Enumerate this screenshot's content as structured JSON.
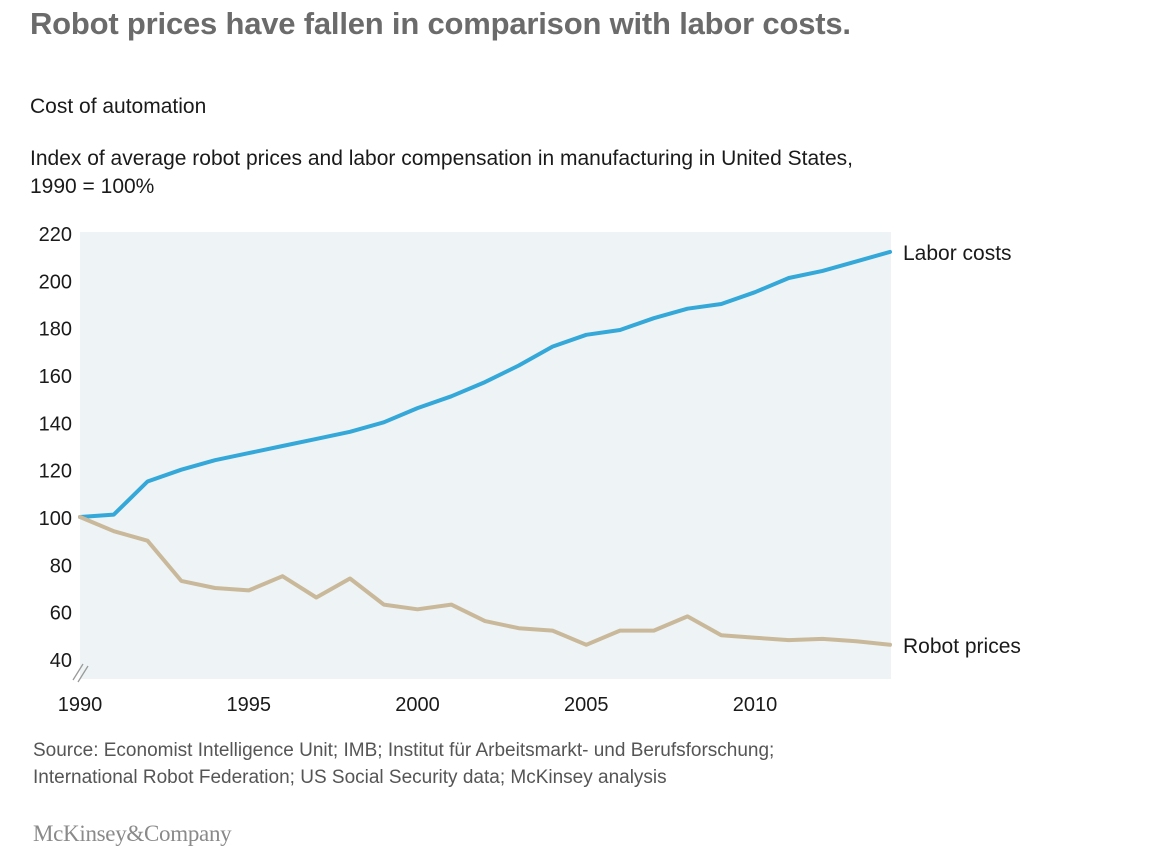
{
  "headline": "Robot prices have fallen in comparison with labor costs.",
  "subhead": "Cost of automation",
  "description": {
    "line1": "Index of average robot prices and labor compensation in manufacturing in United States,",
    "line2": "1990 = 100%"
  },
  "source": {
    "line1": "Source: Economist Intelligence Unit; IMB; Institut für Arbeitsmarkt- und Berufsforschung;",
    "line2": "International Robot Federation; US Social Security data; McKinsey analysis"
  },
  "logo": "McKinsey&Company",
  "colors": {
    "labor": "#34a8d8",
    "robot": "#c9b99a",
    "plot_bg": "#eef3f5",
    "axis_text": "#1a1a1a"
  },
  "chart_data": {
    "type": "line",
    "title": "Cost of automation",
    "xlabel": "",
    "ylabel": "",
    "xlim": [
      1990,
      2014
    ],
    "ylim": [
      35,
      220
    ],
    "axis_break": true,
    "grid": false,
    "x_ticks": [
      1990,
      1995,
      2000,
      2005,
      2010
    ],
    "x_tick_labels": [
      "1990",
      "1995",
      "2000",
      "2005",
      "2010"
    ],
    "y_ticks": [
      220,
      200,
      180,
      160,
      140,
      120,
      100,
      80,
      60,
      40
    ],
    "y_tick_labels": [
      "220",
      "200",
      "180",
      "160",
      "140",
      "120",
      "100",
      "80",
      "60",
      "40"
    ],
    "x": [
      1990,
      1991,
      1992,
      1993,
      1994,
      1995,
      1996,
      1997,
      1998,
      1999,
      2000,
      2001,
      2002,
      2003,
      2004,
      2005,
      2006,
      2007,
      2008,
      2009,
      2010,
      2011,
      2012,
      2013,
      2014
    ],
    "series": [
      {
        "name": "Labor costs",
        "color_key": "labor",
        "values": [
          100,
          101,
          115,
          120,
          124,
          127,
          130,
          133,
          136,
          140,
          146,
          151,
          157,
          164,
          172,
          177,
          179,
          184,
          188,
          190,
          195,
          201,
          204,
          208,
          212
        ]
      },
      {
        "name": "Robot prices",
        "color_key": "robot",
        "values": [
          100,
          94,
          90,
          73,
          70,
          69,
          75,
          66,
          74,
          63,
          61,
          63,
          56,
          53,
          52,
          46,
          52,
          52,
          58,
          50,
          49,
          48,
          48.5,
          47.5,
          46
        ]
      }
    ]
  }
}
